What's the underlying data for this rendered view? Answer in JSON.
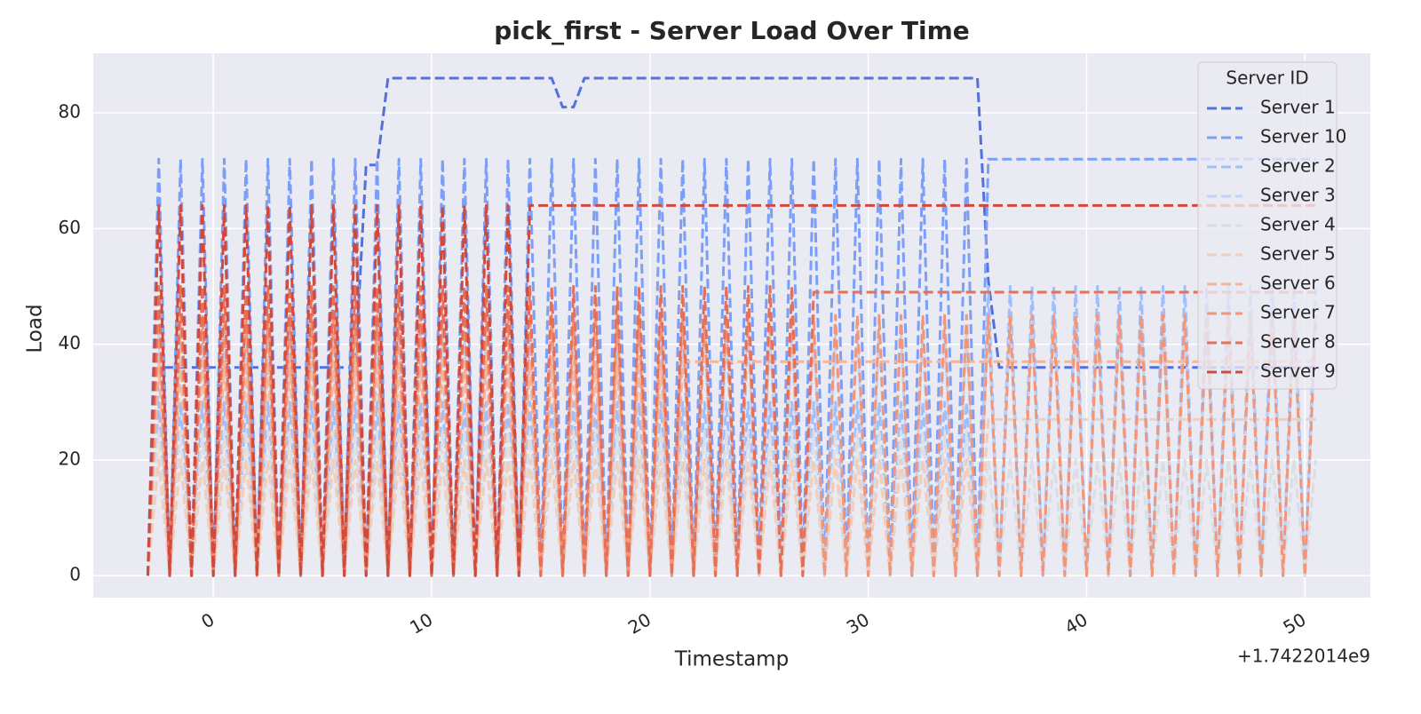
{
  "chart_data": {
    "type": "line",
    "title": "pick_first - Server Load Over Time",
    "x_label": "Timestamp",
    "y_label": "Load",
    "x_offset_label": "+1.7422014e9",
    "legend_title": "Server ID",
    "legend_position": "upper right",
    "grid": true,
    "xlim": [
      -5.5,
      53
    ],
    "ylim": [
      -3.8,
      90.3
    ],
    "xticks": [
      0,
      10,
      20,
      30,
      40,
      50
    ],
    "yticks": [
      0,
      20,
      40,
      60,
      80
    ],
    "x": [
      -3,
      -2.5,
      -2,
      -1.5,
      -1,
      -0.5,
      0,
      0.5,
      1,
      1.5,
      2,
      2.5,
      3,
      3.5,
      4,
      4.5,
      5,
      5.5,
      6,
      6.5,
      7,
      7.5,
      8,
      8.5,
      9,
      9.5,
      10,
      10.5,
      11,
      11.5,
      12,
      12.5,
      13,
      13.5,
      14,
      14.5,
      15,
      15.5,
      16,
      16.5,
      17,
      17.5,
      18,
      18.5,
      19,
      19.5,
      20,
      20.5,
      21,
      21.5,
      22,
      22.5,
      23,
      23.5,
      24,
      24.5,
      25,
      25.5,
      26,
      26.5,
      27,
      27.5,
      28,
      28.5,
      29,
      29.5,
      30,
      30.5,
      31,
      31.5,
      32,
      32.5,
      33,
      33.5,
      34,
      34.5,
      35,
      35.5,
      36,
      36.5,
      37,
      37.5,
      38,
      38.5,
      39,
      39.5,
      40,
      40.5,
      41,
      41.5,
      42,
      42.5,
      43,
      43.5,
      44,
      44.5,
      45,
      45.5,
      46,
      46.5,
      47,
      47.5,
      48,
      48.5,
      49,
      49.5,
      50,
      50.5
    ],
    "series": [
      {
        "name": "Server 1",
        "color": "#5470dc",
        "values": [
          0,
          36,
          36,
          36,
          36,
          36,
          36,
          36,
          36,
          36,
          36,
          36,
          36,
          36,
          36,
          36,
          36,
          36,
          36,
          36,
          71,
          71,
          86,
          86,
          86,
          86,
          86,
          86,
          86,
          86,
          86,
          86,
          86,
          86,
          86,
          86,
          86,
          86,
          81,
          81,
          86,
          86,
          86,
          86,
          86,
          86,
          86,
          86,
          86,
          86,
          86,
          86,
          86,
          86,
          86,
          86,
          86,
          86,
          86,
          86,
          86,
          86,
          86,
          86,
          86,
          86,
          86,
          86,
          86,
          86,
          86,
          86,
          86,
          86,
          86,
          86,
          86,
          51,
          36,
          36,
          36,
          36,
          36,
          36,
          36,
          36,
          36,
          36,
          36,
          36,
          36,
          36,
          36,
          36,
          36,
          36,
          36,
          36,
          36,
          36,
          36,
          36,
          36,
          36,
          36,
          36,
          36,
          36
        ]
      },
      {
        "name": "Server 10",
        "color": "#7b9ff9",
        "values": [
          0,
          72,
          0,
          72,
          0,
          72,
          0,
          72,
          0,
          72,
          0,
          72,
          0,
          72,
          0,
          72,
          0,
          72,
          0,
          72,
          0,
          72,
          0,
          72,
          0,
          72,
          0,
          72,
          0,
          72,
          0,
          72,
          0,
          72,
          0,
          72,
          0,
          72,
          0,
          72,
          0,
          72,
          0,
          72,
          0,
          72,
          0,
          72,
          0,
          72,
          0,
          72,
          0,
          72,
          0,
          72,
          0,
          72,
          0,
          72,
          0,
          72,
          0,
          72,
          0,
          72,
          0,
          72,
          0,
          72,
          0,
          72,
          0,
          72,
          0,
          72,
          0,
          72,
          72,
          72,
          72,
          72,
          72,
          72,
          72,
          72,
          72,
          72,
          72,
          72,
          72,
          72,
          72,
          72,
          72,
          72,
          72,
          72,
          72,
          72,
          72,
          72,
          72,
          72,
          72,
          72,
          72,
          72
        ]
      },
      {
        "name": "Server 2",
        "color": "#9ebeff",
        "values": [
          0,
          30,
          0,
          30,
          0,
          30,
          0,
          30,
          0,
          30,
          0,
          30,
          0,
          30,
          0,
          30,
          0,
          30,
          0,
          30,
          0,
          30,
          0,
          30,
          0,
          30,
          0,
          30,
          0,
          30,
          0,
          30,
          0,
          30,
          0,
          30,
          0,
          30,
          0,
          30,
          0,
          30,
          0,
          30,
          0,
          30,
          0,
          30,
          0,
          30,
          0,
          30,
          0,
          30,
          0,
          30,
          0,
          30,
          0,
          30,
          0,
          30,
          0,
          30,
          0,
          30,
          0,
          30,
          0,
          30,
          0,
          30,
          0,
          30,
          0,
          30,
          0,
          50,
          0,
          50,
          0,
          50,
          0,
          50,
          0,
          50,
          0,
          50,
          0,
          50,
          0,
          50,
          0,
          50,
          0,
          50,
          0,
          50,
          0,
          50,
          0,
          50,
          0,
          50,
          0,
          50,
          0,
          50
        ]
      },
      {
        "name": "Server 3",
        "color": "#bfd3f6",
        "values": [
          0,
          42,
          0,
          42,
          0,
          42,
          0,
          42,
          0,
          42,
          0,
          42,
          0,
          42,
          0,
          42,
          0,
          42,
          0,
          42,
          0,
          42,
          0,
          42,
          0,
          42,
          0,
          42,
          0,
          42,
          0,
          42,
          0,
          42,
          0,
          42,
          0,
          42,
          0,
          42,
          0,
          42,
          0,
          42,
          0,
          42,
          0,
          42,
          0,
          42,
          0,
          42,
          0,
          42,
          0,
          42,
          0,
          42,
          0,
          42,
          0,
          42,
          0,
          42,
          0,
          42,
          0,
          42,
          0,
          42,
          0,
          42,
          0,
          42,
          0,
          42,
          0,
          45,
          0,
          45,
          0,
          45,
          0,
          45,
          0,
          45,
          0,
          45,
          0,
          45,
          0,
          45,
          0,
          45,
          0,
          45,
          0,
          45,
          0,
          45,
          0,
          45,
          0,
          45,
          0,
          45,
          0,
          45
        ]
      },
      {
        "name": "Server 4",
        "color": "#dcdde2",
        "values": [
          0,
          25,
          0,
          25,
          0,
          25,
          0,
          25,
          0,
          25,
          0,
          25,
          0,
          25,
          0,
          25,
          0,
          25,
          0,
          25,
          0,
          25,
          0,
          25,
          0,
          25,
          0,
          25,
          0,
          25,
          0,
          25,
          0,
          25,
          0,
          25,
          0,
          25,
          0,
          25,
          0,
          25,
          0,
          25,
          0,
          25,
          0,
          25,
          0,
          25,
          0,
          25,
          0,
          25,
          0,
          25,
          0,
          25,
          0,
          25,
          0,
          25,
          0,
          25,
          0,
          25,
          0,
          25,
          0,
          25,
          0,
          25,
          0,
          25,
          0,
          25,
          0,
          20,
          0,
          20,
          0,
          20,
          0,
          20,
          0,
          20,
          0,
          20,
          0,
          20,
          0,
          20,
          0,
          20,
          0,
          20,
          0,
          20,
          0,
          20,
          0,
          20,
          0,
          20,
          0,
          20,
          0,
          20
        ]
      },
      {
        "name": "Server 5",
        "color": "#efcebd",
        "values": [
          0,
          20,
          0,
          20,
          0,
          20,
          0,
          20,
          0,
          20,
          0,
          20,
          0,
          20,
          0,
          20,
          0,
          20,
          0,
          20,
          0,
          20,
          0,
          20,
          0,
          20,
          0,
          20,
          0,
          20,
          0,
          20,
          0,
          20,
          0,
          20,
          0,
          20,
          0,
          20,
          0,
          20,
          0,
          20,
          0,
          20,
          0,
          20,
          0,
          20,
          0,
          20,
          0,
          20,
          0,
          20,
          0,
          20,
          0,
          20,
          0,
          20,
          0,
          20,
          0,
          20,
          0,
          20,
          0,
          20,
          0,
          20,
          0,
          20,
          0,
          20,
          0,
          27,
          27,
          27,
          27,
          27,
          27,
          27,
          27,
          27,
          27,
          27,
          27,
          27,
          27,
          27,
          27,
          27,
          27,
          27,
          27,
          27,
          27,
          27,
          27,
          27,
          27,
          27,
          27,
          27,
          27,
          27
        ]
      },
      {
        "name": "Server 6",
        "color": "#f5b59a",
        "values": [
          0,
          37,
          0,
          37,
          0,
          37,
          0,
          37,
          0,
          37,
          0,
          37,
          0,
          37,
          0,
          37,
          0,
          37,
          0,
          37,
          0,
          37,
          0,
          37,
          0,
          37,
          0,
          37,
          0,
          37,
          0,
          37,
          0,
          37,
          0,
          37,
          0,
          37,
          0,
          37,
          0,
          37,
          0,
          37,
          0,
          37,
          0,
          37,
          0,
          37,
          37,
          37,
          37,
          37,
          37,
          37,
          37,
          37,
          37,
          37,
          37,
          37,
          37,
          37,
          37,
          37,
          37,
          37,
          37,
          37,
          37,
          37,
          37,
          37,
          37,
          37,
          37,
          37,
          37,
          37,
          37,
          37,
          37,
          37,
          37,
          37,
          37,
          37,
          37,
          37,
          37,
          37,
          37,
          37,
          37,
          37,
          37,
          37,
          37,
          37,
          37,
          37,
          37,
          37,
          37,
          37,
          37,
          37
        ]
      },
      {
        "name": "Server 7",
        "color": "#f29679",
        "values": [
          0,
          45,
          0,
          45,
          0,
          45,
          0,
          45,
          0,
          45,
          0,
          45,
          0,
          45,
          0,
          45,
          0,
          45,
          0,
          45,
          0,
          45,
          0,
          45,
          0,
          45,
          0,
          45,
          0,
          45,
          0,
          45,
          0,
          45,
          0,
          45,
          0,
          45,
          0,
          45,
          0,
          45,
          0,
          45,
          0,
          45,
          0,
          45,
          0,
          45,
          0,
          45,
          0,
          45,
          0,
          45,
          0,
          45,
          0,
          45,
          0,
          45,
          0,
          45,
          0,
          45,
          0,
          45,
          0,
          45,
          0,
          45,
          0,
          45,
          0,
          45,
          0,
          45,
          0,
          45,
          0,
          45,
          0,
          45,
          0,
          45,
          0,
          45,
          0,
          45,
          0,
          45,
          0,
          45,
          0,
          45,
          0,
          45,
          0,
          45,
          0,
          45,
          0,
          45,
          0,
          45,
          0,
          45
        ]
      },
      {
        "name": "Server 8",
        "color": "#e56f58",
        "values": [
          0,
          50,
          0,
          50,
          0,
          50,
          0,
          50,
          0,
          50,
          0,
          50,
          0,
          50,
          0,
          50,
          0,
          50,
          0,
          50,
          0,
          50,
          0,
          50,
          0,
          50,
          0,
          50,
          0,
          50,
          0,
          50,
          0,
          50,
          0,
          50,
          0,
          50,
          0,
          50,
          0,
          50,
          0,
          50,
          0,
          50,
          0,
          50,
          0,
          50,
          0,
          50,
          0,
          50,
          0,
          50,
          0,
          50,
          0,
          50,
          0,
          49,
          49,
          49,
          49,
          49,
          49,
          49,
          49,
          49,
          49,
          49,
          49,
          49,
          49,
          49,
          49,
          49,
          49,
          49,
          49,
          49,
          49,
          49,
          49,
          49,
          49,
          49,
          49,
          49,
          49,
          49,
          49,
          49,
          49,
          49,
          49,
          49,
          49,
          49,
          49,
          49,
          49,
          49,
          49,
          49,
          49,
          49
        ]
      },
      {
        "name": "Server 9",
        "color": "#cf4a3e",
        "values": [
          0,
          64,
          0,
          64,
          0,
          64,
          0,
          64,
          0,
          64,
          0,
          64,
          0,
          64,
          0,
          64,
          0,
          64,
          0,
          64,
          0,
          64,
          0,
          64,
          0,
          64,
          0,
          64,
          0,
          64,
          0,
          64,
          0,
          64,
          0,
          64,
          64,
          64,
          64,
          64,
          64,
          64,
          64,
          64,
          64,
          64,
          64,
          64,
          64,
          64,
          64,
          64,
          64,
          64,
          64,
          64,
          64,
          64,
          64,
          64,
          64,
          64,
          64,
          64,
          64,
          64,
          64,
          64,
          64,
          64,
          64,
          64,
          64,
          64,
          64,
          64,
          64,
          64,
          64,
          64,
          64,
          64,
          64,
          64,
          64,
          64,
          64,
          64,
          64,
          64,
          64,
          64,
          64,
          64,
          64,
          64,
          64,
          64,
          64,
          64,
          64,
          64,
          64,
          64,
          64,
          64,
          64,
          64
        ]
      }
    ]
  }
}
